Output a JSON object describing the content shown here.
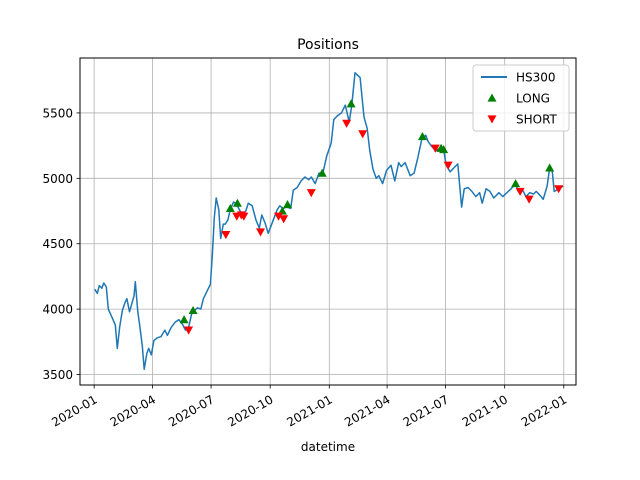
{
  "chart_data": {
    "type": "line",
    "title": "Positions",
    "xlabel": "datetime",
    "ylabel": "",
    "xlim": [
      "2019-12-10",
      "2022-01-20"
    ],
    "ylim": [
      3420,
      5920
    ],
    "grid": true,
    "legend_position": "top-right",
    "x_ticks": [
      "2020-01",
      "2020-04",
      "2020-07",
      "2020-10",
      "2021-01",
      "2021-04",
      "2021-07",
      "2021-10",
      "2022-01"
    ],
    "y_ticks": [
      3500,
      4000,
      4500,
      5000,
      5500
    ],
    "series": [
      {
        "name": "HS300",
        "kind": "line",
        "color": "#1f77b4",
        "points": [
          [
            "2020-01-02",
            4152
          ],
          [
            "2020-01-06",
            4120
          ],
          [
            "2020-01-09",
            4180
          ],
          [
            "2020-01-13",
            4160
          ],
          [
            "2020-01-16",
            4200
          ],
          [
            "2020-01-20",
            4170
          ],
          [
            "2020-01-23",
            4000
          ],
          [
            "2020-02-03",
            3880
          ],
          [
            "2020-02-06",
            3700
          ],
          [
            "2020-02-10",
            3870
          ],
          [
            "2020-02-14",
            3990
          ],
          [
            "2020-02-18",
            4050
          ],
          [
            "2020-02-21",
            4080
          ],
          [
            "2020-02-25",
            3980
          ],
          [
            "2020-03-03",
            4100
          ],
          [
            "2020-03-05",
            4210
          ],
          [
            "2020-03-09",
            3980
          ],
          [
            "2020-03-12",
            3870
          ],
          [
            "2020-03-16",
            3720
          ],
          [
            "2020-03-19",
            3540
          ],
          [
            "2020-03-23",
            3660
          ],
          [
            "2020-03-26",
            3700
          ],
          [
            "2020-03-30",
            3650
          ],
          [
            "2020-04-03",
            3760
          ],
          [
            "2020-04-08",
            3780
          ],
          [
            "2020-04-14",
            3790
          ],
          [
            "2020-04-20",
            3840
          ],
          [
            "2020-04-24",
            3800
          ],
          [
            "2020-04-30",
            3860
          ],
          [
            "2020-05-06",
            3900
          ],
          [
            "2020-05-12",
            3920
          ],
          [
            "2020-05-18",
            3880
          ],
          [
            "2020-05-22",
            3840
          ],
          [
            "2020-05-27",
            3860
          ],
          [
            "2020-06-01",
            3970
          ],
          [
            "2020-06-05",
            3990
          ],
          [
            "2020-06-10",
            4010
          ],
          [
            "2020-06-15",
            4000
          ],
          [
            "2020-06-19",
            4080
          ],
          [
            "2020-06-24",
            4130
          ],
          [
            "2020-06-30",
            4190
          ],
          [
            "2020-07-03",
            4420
          ],
          [
            "2020-07-06",
            4700
          ],
          [
            "2020-07-09",
            4850
          ],
          [
            "2020-07-13",
            4760
          ],
          [
            "2020-07-16",
            4540
          ],
          [
            "2020-07-20",
            4650
          ],
          [
            "2020-07-23",
            4650
          ],
          [
            "2020-07-27",
            4680
          ],
          [
            "2020-07-31",
            4760
          ],
          [
            "2020-08-05",
            4820
          ],
          [
            "2020-08-10",
            4800
          ],
          [
            "2020-08-14",
            4760
          ],
          [
            "2020-08-19",
            4720
          ],
          [
            "2020-08-24",
            4750
          ],
          [
            "2020-08-28",
            4810
          ],
          [
            "2020-09-03",
            4790
          ],
          [
            "2020-09-09",
            4680
          ],
          [
            "2020-09-14",
            4620
          ],
          [
            "2020-09-18",
            4720
          ],
          [
            "2020-09-23",
            4660
          ],
          [
            "2020-09-28",
            4580
          ],
          [
            "2020-10-12",
            4760
          ],
          [
            "2020-10-16",
            4790
          ],
          [
            "2020-10-21",
            4770
          ],
          [
            "2020-10-27",
            4780
          ],
          [
            "2020-11-02",
            4770
          ],
          [
            "2020-11-06",
            4910
          ],
          [
            "2020-11-12",
            4930
          ],
          [
            "2020-11-18",
            4980
          ],
          [
            "2020-11-24",
            5010
          ],
          [
            "2020-11-30",
            4990
          ],
          [
            "2020-12-04",
            5010
          ],
          [
            "2020-12-10",
            4960
          ],
          [
            "2020-12-16",
            5040
          ],
          [
            "2020-12-22",
            5040
          ],
          [
            "2020-12-28",
            5170
          ],
          [
            "2021-01-04",
            5270
          ],
          [
            "2021-01-08",
            5450
          ],
          [
            "2021-01-14",
            5480
          ],
          [
            "2021-01-20",
            5500
          ],
          [
            "2021-01-26",
            5560
          ],
          [
            "2021-02-01",
            5430
          ],
          [
            "2021-02-05",
            5560
          ],
          [
            "2021-02-10",
            5807
          ],
          [
            "2021-02-18",
            5770
          ],
          [
            "2021-02-24",
            5470
          ],
          [
            "2021-03-01",
            5380
          ],
          [
            "2021-03-05",
            5210
          ],
          [
            "2021-03-10",
            5070
          ],
          [
            "2021-03-15",
            5000
          ],
          [
            "2021-03-19",
            5020
          ],
          [
            "2021-03-25",
            4960
          ],
          [
            "2021-03-31",
            5060
          ],
          [
            "2021-04-07",
            5100
          ],
          [
            "2021-04-13",
            4980
          ],
          [
            "2021-04-19",
            5120
          ],
          [
            "2021-04-23",
            5090
          ],
          [
            "2021-04-29",
            5120
          ],
          [
            "2021-05-07",
            5020
          ],
          [
            "2021-05-13",
            5040
          ],
          [
            "2021-05-19",
            5160
          ],
          [
            "2021-05-25",
            5300
          ],
          [
            "2021-05-31",
            5330
          ],
          [
            "2021-06-04",
            5280
          ],
          [
            "2021-06-10",
            5240
          ],
          [
            "2021-06-16",
            5210
          ],
          [
            "2021-06-22",
            5230
          ],
          [
            "2021-06-28",
            5220
          ],
          [
            "2021-07-02",
            5100
          ],
          [
            "2021-07-08",
            5050
          ],
          [
            "2021-07-14",
            5080
          ],
          [
            "2021-07-20",
            5110
          ],
          [
            "2021-07-26",
            4780
          ],
          [
            "2021-07-30",
            4920
          ],
          [
            "2021-08-05",
            4930
          ],
          [
            "2021-08-11",
            4900
          ],
          [
            "2021-08-17",
            4860
          ],
          [
            "2021-08-23",
            4890
          ],
          [
            "2021-08-27",
            4810
          ],
          [
            "2021-09-02",
            4920
          ],
          [
            "2021-09-08",
            4900
          ],
          [
            "2021-09-14",
            4850
          ],
          [
            "2021-09-22",
            4890
          ],
          [
            "2021-09-28",
            4860
          ],
          [
            "2021-10-11",
            4920
          ],
          [
            "2021-10-18",
            4960
          ],
          [
            "2021-10-22",
            4900
          ],
          [
            "2021-10-28",
            4920
          ],
          [
            "2021-11-03",
            4860
          ],
          [
            "2021-11-09",
            4890
          ],
          [
            "2021-11-15",
            4880
          ],
          [
            "2021-11-19",
            4900
          ],
          [
            "2021-11-25",
            4870
          ],
          [
            "2021-11-30",
            4840
          ],
          [
            "2021-12-06",
            4940
          ],
          [
            "2021-12-10",
            5080
          ],
          [
            "2021-12-14",
            5060
          ],
          [
            "2021-12-17",
            4900
          ],
          [
            "2021-12-21",
            4910
          ],
          [
            "2021-12-27",
            4930
          ],
          [
            "2021-12-31",
            4940
          ]
        ]
      },
      {
        "name": "LONG",
        "kind": "marker",
        "marker": "triangle-up",
        "color": "#008000",
        "points": [
          [
            "2020-05-20",
            3920
          ],
          [
            "2020-06-03",
            3990
          ],
          [
            "2020-07-31",
            4770
          ],
          [
            "2020-08-11",
            4810
          ],
          [
            "2020-10-20",
            4750
          ],
          [
            "2020-10-28",
            4800
          ],
          [
            "2020-12-21",
            5040
          ],
          [
            "2021-02-04",
            5570
          ],
          [
            "2021-05-26",
            5320
          ],
          [
            "2021-06-24",
            5230
          ],
          [
            "2021-06-28",
            5220
          ],
          [
            "2021-10-18",
            4960
          ],
          [
            "2021-12-10",
            5080
          ]
        ]
      },
      {
        "name": "SHORT",
        "kind": "marker",
        "marker": "triangle-down",
        "color": "#ff0000",
        "points": [
          [
            "2020-05-27",
            3840
          ],
          [
            "2020-07-24",
            4570
          ],
          [
            "2020-08-10",
            4710
          ],
          [
            "2020-08-17",
            4720
          ],
          [
            "2020-08-21",
            4710
          ],
          [
            "2020-09-16",
            4590
          ],
          [
            "2020-10-14",
            4710
          ],
          [
            "2020-10-22",
            4690
          ],
          [
            "2020-12-04",
            4890
          ],
          [
            "2021-01-28",
            5420
          ],
          [
            "2021-02-22",
            5340
          ],
          [
            "2021-06-15",
            5230
          ],
          [
            "2021-07-05",
            5100
          ],
          [
            "2021-10-25",
            4900
          ],
          [
            "2021-11-08",
            4840
          ],
          [
            "2021-12-24",
            4920
          ]
        ]
      }
    ]
  }
}
